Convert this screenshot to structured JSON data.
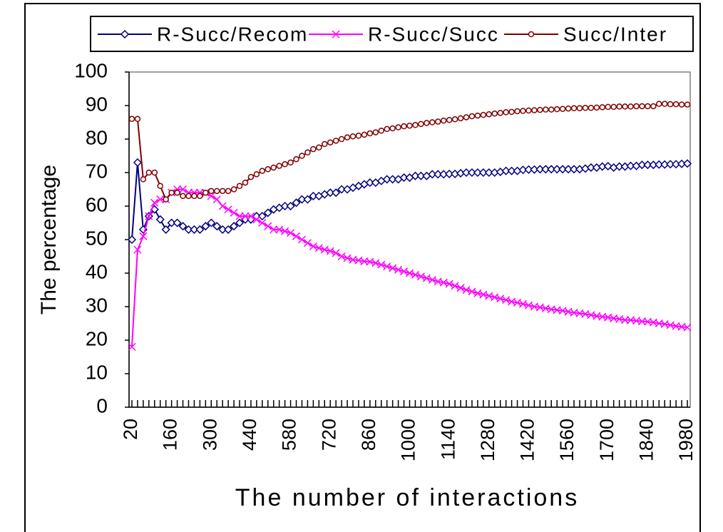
{
  "chart_data": {
    "type": "line",
    "xlabel": "The number of interactions",
    "ylabel": "The percentage",
    "x": [
      20,
      40,
      60,
      80,
      100,
      120,
      140,
      160,
      180,
      200,
      220,
      240,
      260,
      280,
      300,
      320,
      340,
      360,
      380,
      400,
      420,
      440,
      460,
      480,
      500,
      520,
      540,
      560,
      580,
      600,
      620,
      640,
      660,
      680,
      700,
      720,
      740,
      760,
      780,
      800,
      820,
      840,
      860,
      880,
      900,
      920,
      940,
      960,
      980,
      1000,
      1020,
      1040,
      1060,
      1080,
      1100,
      1120,
      1140,
      1160,
      1180,
      1200,
      1220,
      1240,
      1260,
      1280,
      1300,
      1320,
      1340,
      1360,
      1380,
      1400,
      1420,
      1440,
      1460,
      1480,
      1500,
      1520,
      1540,
      1560,
      1580,
      1600,
      1620,
      1640,
      1660,
      1680,
      1700,
      1720,
      1740,
      1760,
      1780,
      1800,
      1820,
      1840,
      1860,
      1880,
      1900,
      1920,
      1940,
      1960,
      1980
    ],
    "xlim": [
      10,
      1990
    ],
    "xticks": [
      20,
      160,
      300,
      440,
      580,
      720,
      860,
      1000,
      1140,
      1280,
      1420,
      1560,
      1700,
      1840,
      1980
    ],
    "ylim": [
      0,
      100
    ],
    "yticks": [
      0,
      10,
      20,
      30,
      40,
      50,
      60,
      70,
      80,
      90,
      100
    ],
    "legend": "top",
    "series": [
      {
        "name": "R-Succ/Recom",
        "color": "#000080",
        "marker": "diamond",
        "values": [
          50,
          73,
          53,
          57,
          59,
          56,
          53,
          55,
          55,
          54,
          53,
          53,
          53,
          54,
          55,
          54,
          53,
          53,
          54,
          55,
          56,
          56,
          57,
          57,
          58,
          59,
          59.5,
          60,
          60,
          61,
          62,
          62,
          63,
          63,
          63.5,
          64,
          64,
          65,
          65,
          65.5,
          66,
          66.5,
          67,
          67,
          67.5,
          68,
          68,
          68,
          68.5,
          68.5,
          69,
          69,
          69,
          69.5,
          69.5,
          69.5,
          69.6,
          69.6,
          69.8,
          70,
          70,
          70,
          70,
          70,
          70,
          70.2,
          70.5,
          70.5,
          70.5,
          70.8,
          70.9,
          70.9,
          71,
          71,
          71,
          71,
          71,
          71,
          71,
          71,
          71.2,
          71.5,
          71.5,
          71.8,
          71.9,
          71.5,
          71.8,
          71.8,
          72,
          72,
          72.3,
          72.3,
          72.3,
          72.4,
          72.4,
          72.5,
          72.5,
          72.6,
          72.7
        ]
      },
      {
        "name": "R-Succ/Succ",
        "color": "#ff00ff",
        "marker": "cross",
        "values": [
          18,
          47,
          51,
          57,
          61,
          62,
          62,
          64,
          65,
          65,
          64,
          64,
          64,
          64,
          63,
          62,
          60,
          59,
          58,
          57,
          57,
          57,
          56,
          55,
          54,
          53,
          53,
          52.5,
          52,
          51,
          50,
          49,
          48,
          47.5,
          47,
          46.6,
          46,
          45,
          44.5,
          44,
          43.8,
          43.5,
          43.4,
          43,
          42.5,
          42,
          41.5,
          41,
          40.5,
          40,
          39.5,
          39,
          38.5,
          38,
          37.5,
          37.2,
          36.8,
          36.2,
          35.6,
          35,
          34.5,
          34,
          33.6,
          33.2,
          32.8,
          32.4,
          32,
          31.5,
          31.2,
          30.8,
          30.4,
          30,
          29.8,
          29.5,
          29.2,
          29,
          28.8,
          28.5,
          28.2,
          28,
          27.8,
          27.5,
          27.2,
          27,
          26.8,
          26.5,
          26.3,
          26,
          26,
          25.8,
          25.6,
          25.5,
          25.3,
          25,
          24.8,
          24.5,
          24.2,
          24,
          23.8
        ]
      },
      {
        "name": "Succ/Inter",
        "color": "#800000",
        "marker": "circle",
        "values": [
          86,
          86,
          68,
          70,
          70,
          66,
          62,
          64,
          64,
          63,
          63,
          63,
          63,
          64,
          64.5,
          64.5,
          64.5,
          64.5,
          65,
          66,
          67,
          68.7,
          69.5,
          70.5,
          71,
          71.5,
          72,
          72.5,
          73,
          74,
          75,
          76,
          77,
          77.5,
          78.5,
          79,
          79.5,
          80,
          80.5,
          80.8,
          81,
          81.3,
          81.7,
          82,
          82.5,
          83,
          83.2,
          83.5,
          83.8,
          84,
          84.2,
          84.5,
          84.8,
          85,
          85.2,
          85.5,
          85.7,
          85.9,
          86.2,
          86.5,
          86.8,
          87,
          87.2,
          87.4,
          87.6,
          87.8,
          88,
          88.1,
          88.3,
          88.4,
          88.5,
          88.6,
          88.7,
          88.8,
          88.8,
          88.9,
          89,
          89.1,
          89.2,
          89.2,
          89.3,
          89.3,
          89.4,
          89.5,
          89.6,
          89.6,
          89.7,
          89.7,
          89.7,
          89.8,
          89.8,
          89.8,
          89.8,
          90.5,
          90.5,
          90.4,
          90.4,
          90.3,
          90.3
        ]
      }
    ]
  }
}
